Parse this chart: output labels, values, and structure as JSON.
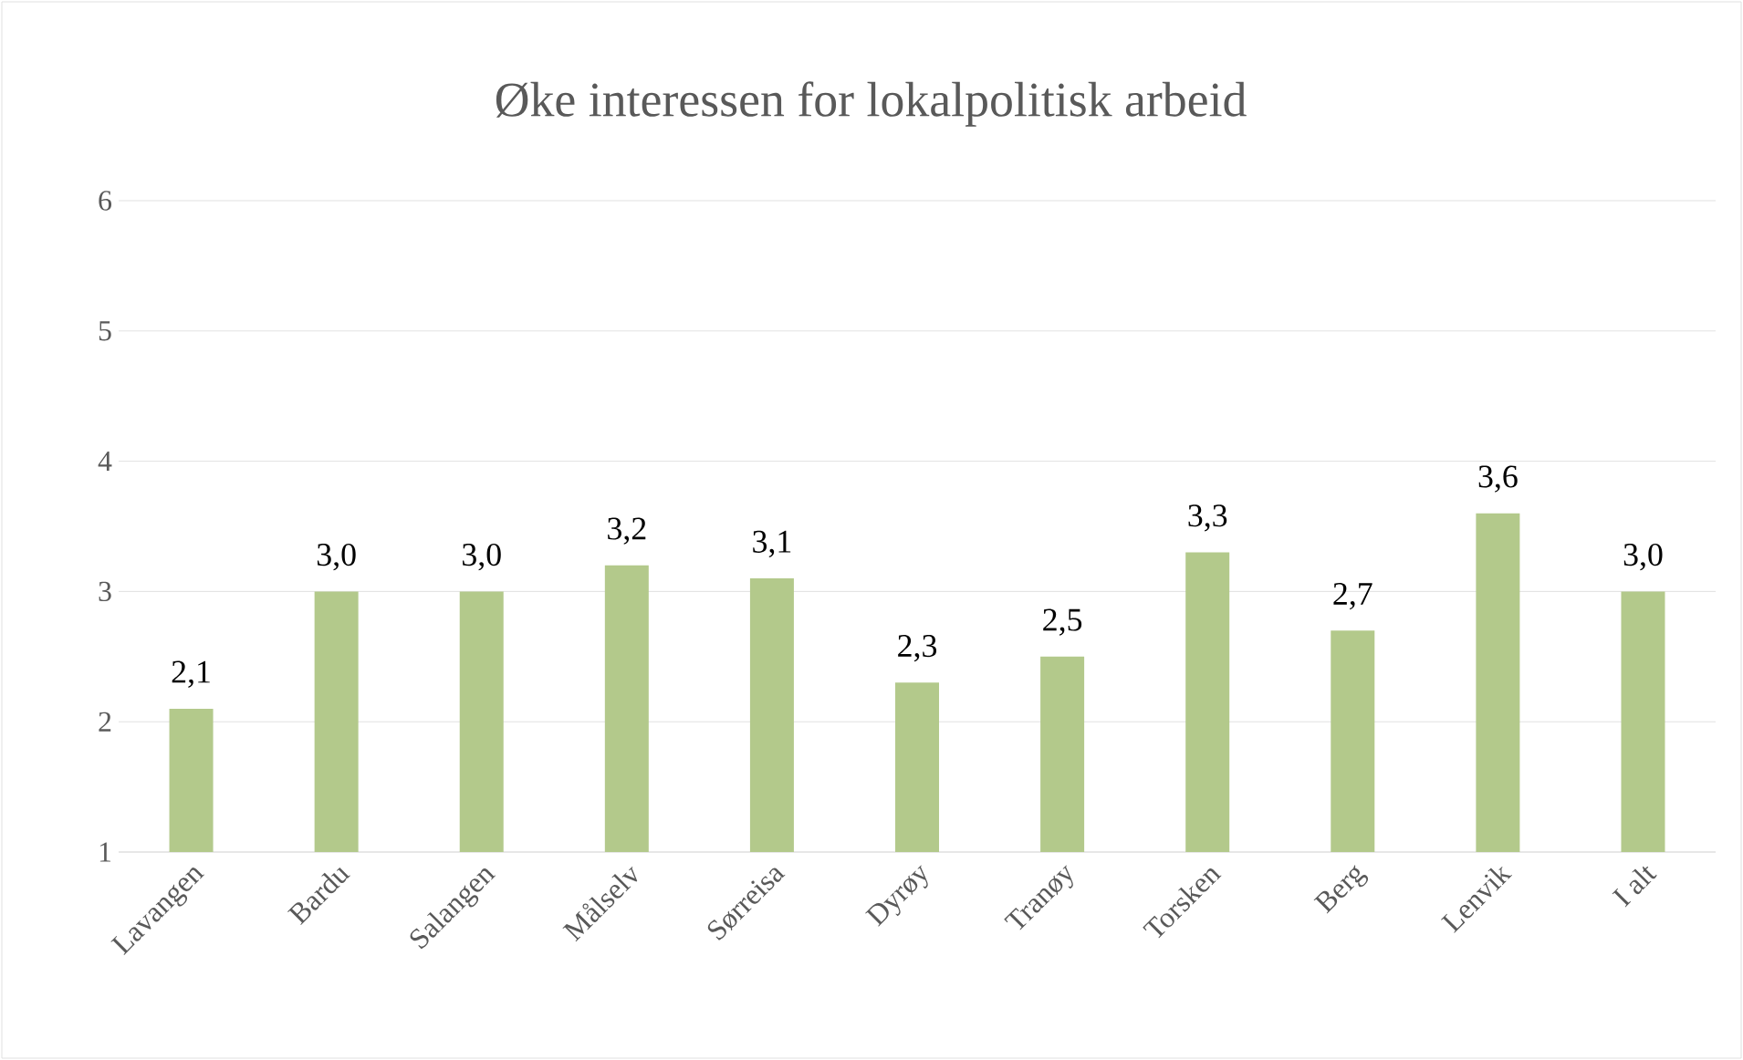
{
  "chart_data": {
    "type": "bar",
    "title": "Øke interessen for lokalpolitisk arbeid",
    "categories": [
      "Lavangen",
      "Bardu",
      "Salangen",
      "Målselv",
      "Sørreisa",
      "Dyrøy",
      "Tranøy",
      "Torsken",
      "Berg",
      "Lenvik",
      "I alt"
    ],
    "values": [
      2.1,
      3.0,
      3.0,
      3.2,
      3.1,
      2.3,
      2.5,
      3.3,
      2.7,
      3.6,
      3.0
    ],
    "value_labels": [
      "2,1",
      "3,0",
      "3,0",
      "3,2",
      "3,1",
      "2,3",
      "2,5",
      "3,3",
      "2,7",
      "3,6",
      "3,0"
    ],
    "color": "#b3c98b",
    "ylim": [
      1,
      6
    ],
    "yticks": [
      1,
      2,
      3,
      4,
      5,
      6
    ],
    "grid": "y"
  }
}
